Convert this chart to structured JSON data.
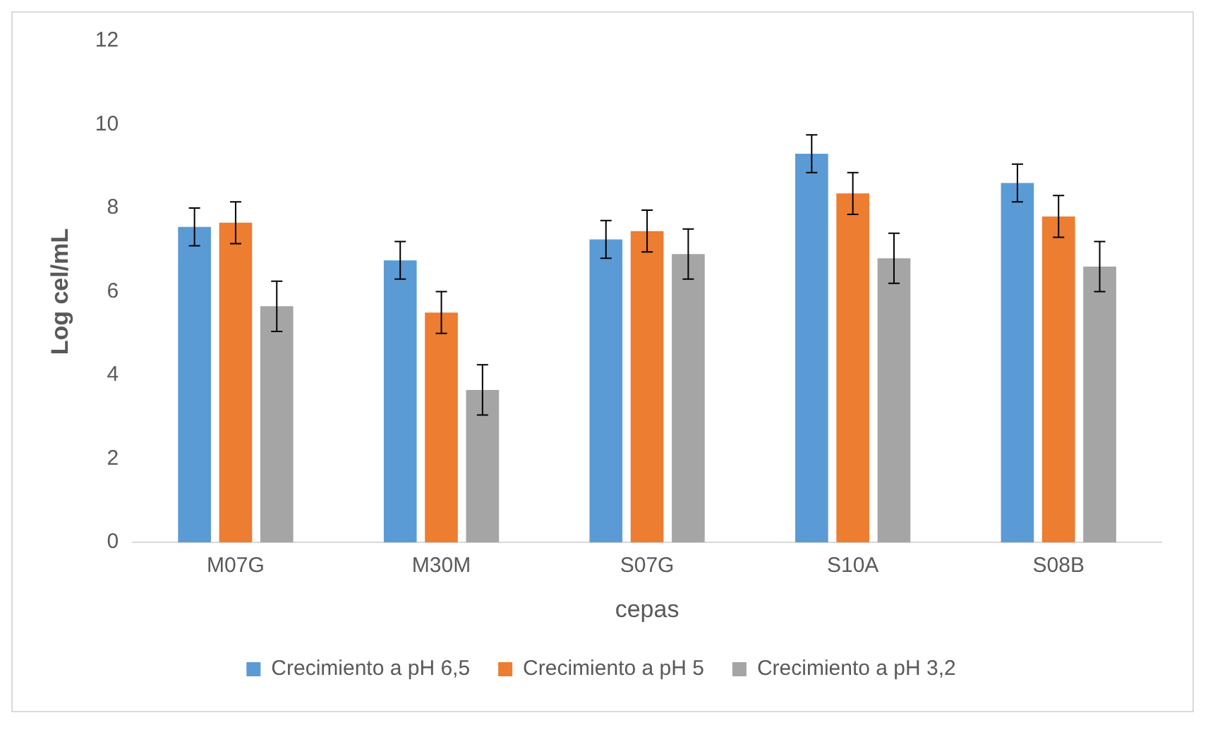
{
  "chart_data": {
    "type": "bar",
    "xlabel": "cepas",
    "ylabel": "Log cel/mL",
    "categories": [
      "M07G",
      "M30M",
      "S07G",
      "S10A",
      "S08B"
    ],
    "series": [
      {
        "name": "Crecimiento a pH 6,5",
        "color": "#5b9bd5",
        "values": [
          7.55,
          6.75,
          7.25,
          9.3,
          8.6
        ],
        "errors": [
          0.45,
          0.45,
          0.45,
          0.45,
          0.45
        ]
      },
      {
        "name": "Crecimiento a pH 5",
        "color": "#ed7d31",
        "values": [
          7.65,
          5.5,
          7.45,
          8.35,
          7.8
        ],
        "errors": [
          0.5,
          0.5,
          0.5,
          0.5,
          0.5
        ]
      },
      {
        "name": "Crecimiento a pH 3,2",
        "color": "#a5a5a5",
        "values": [
          5.65,
          3.65,
          6.9,
          6.8,
          6.6
        ],
        "errors": [
          0.6,
          0.6,
          0.6,
          0.6,
          0.6
        ]
      }
    ],
    "ylim": [
      0,
      12
    ],
    "yticks": [
      0,
      2,
      4,
      6,
      8,
      10,
      12
    ],
    "grid": false,
    "legend": "bottom"
  }
}
